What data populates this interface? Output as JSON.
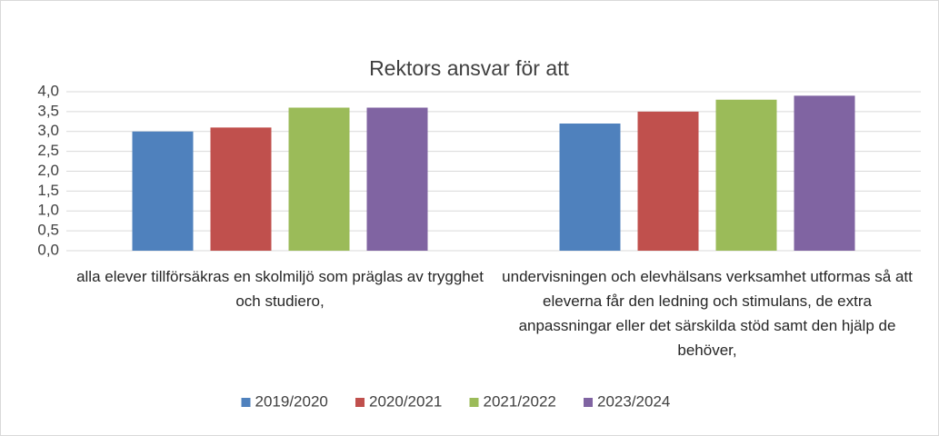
{
  "chart_data": {
    "type": "bar",
    "title": "Rektors ansvar för att",
    "categories": [
      "alla elever tillförsäkras en skolmiljö som präglas av trygghet och studiero,",
      "undervisningen och elevhälsans verksamhet utformas så att eleverna får den ledning och stimulans, de extra anpassningar eller det särskilda stöd samt den hjälp de behöver,"
    ],
    "series": [
      {
        "name": "2019/2020",
        "color": "#4f81bd",
        "values": [
          3.0,
          3.2
        ]
      },
      {
        "name": "2020/2021",
        "color": "#c0504d",
        "values": [
          3.1,
          3.5
        ]
      },
      {
        "name": "2021/2022",
        "color": "#9bbb59",
        "values": [
          3.6,
          3.8
        ]
      },
      {
        "name": "2023/2024",
        "color": "#8064a2",
        "values": [
          3.6,
          3.9
        ]
      }
    ],
    "ylim": [
      0,
      4
    ],
    "yticks": [
      {
        "value": 0,
        "label": "0,0"
      },
      {
        "value": 0.5,
        "label": "0,5"
      },
      {
        "value": 1,
        "label": "1,0"
      },
      {
        "value": 1.5,
        "label": "1,5"
      },
      {
        "value": 2,
        "label": "2,0"
      },
      {
        "value": 2.5,
        "label": "2,5"
      },
      {
        "value": 3,
        "label": "3,0"
      },
      {
        "value": 3.5,
        "label": "3,5"
      },
      {
        "value": 4,
        "label": "4,0"
      }
    ],
    "grid": true,
    "legend": "bottom"
  }
}
